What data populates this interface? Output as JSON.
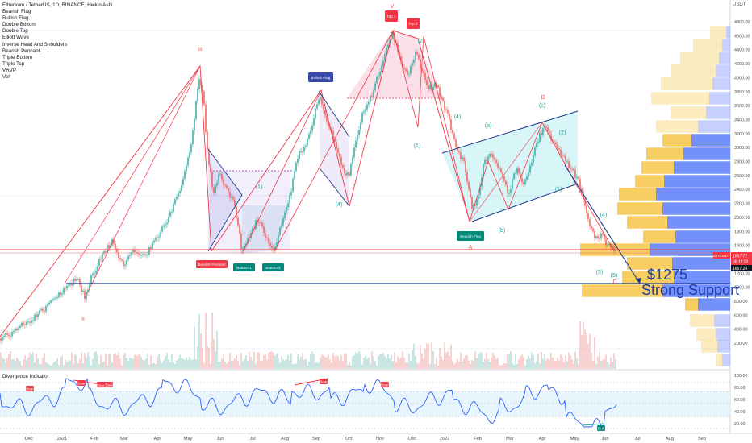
{
  "header": {
    "title": "Ethereum / TetherUS, 1D, BINANCE, Heikin Ashi",
    "indicators": [
      "Bearish Flag",
      "Bullish Flag",
      "Double Bottom",
      "Double Top",
      "Elliott Wave",
      "Inverse Head And Shoulders",
      "Bearish Pennant",
      "Triple Bottom",
      "Triple Top",
      "VRVP",
      "Vol"
    ]
  },
  "price_axis": {
    "unit": "USDT",
    "ticks": [
      "4800.00",
      "4600.00",
      "4400.00",
      "4200.00",
      "4000.00",
      "3800.00",
      "3600.00",
      "3400.00",
      "3200.00",
      "3000.00",
      "2800.00",
      "2600.00",
      "2400.00",
      "2200.00",
      "2000.00",
      "1800.00",
      "1600.00",
      "1400.00",
      "1200.00",
      "1000.00",
      "800.00",
      "600.00",
      "400.00",
      "200.00"
    ],
    "symbol_tag": "ETHUSDT",
    "price_tags": [
      "1667.72",
      "06:11:13",
      "1667.24"
    ],
    "tag_colors": {
      "symbol": "#f23645",
      "price": "#131722"
    }
  },
  "osc_axis": {
    "ticks": [
      "100.00",
      "80.00",
      "60.00",
      "40.00",
      "20.00"
    ]
  },
  "time_axis": {
    "ticks": [
      "Dec",
      "2021",
      "Feb",
      "Mar",
      "Apr",
      "May",
      "Jun",
      "Jul",
      "Aug",
      "Sep",
      "Oct",
      "Nov",
      "Dec",
      "2022",
      "Feb",
      "Mar",
      "Apr",
      "May",
      "Jun",
      "Jul",
      "Aug",
      "Sep"
    ]
  },
  "annotations": {
    "patterns": [
      "Bearish Pennant",
      "Bottom 1",
      "Bottom 2",
      "Bullish Flag",
      "Bearish Flag",
      "Top 1",
      "Top 2"
    ],
    "waves": [
      "(1)",
      "(4)",
      "(2)",
      "(4)",
      "(1)",
      "(a)",
      "(b)",
      "(c)",
      "(2)",
      "(1)",
      "(4)",
      "(3)",
      "(5)"
    ],
    "letters": [
      "V",
      "B",
      "A",
      "C",
      "I",
      "II",
      "III"
    ],
    "callout_price": "$1275",
    "callout_text": "Strong Support"
  },
  "oscillator": {
    "title": "Divergence Indicator",
    "labels": [
      "Bear",
      "Bear",
      "Bear/Bear",
      "Bear",
      "Bear",
      "Bull"
    ]
  },
  "colors": {
    "bull": "#26a69a",
    "bear": "#ef5350",
    "support_line": "#1e3a8a",
    "resistance_line": "#f23645",
    "callout_text": "#1e3aa8",
    "osc_line": "#2962ff",
    "vp_up": "#f7c548",
    "vp_down": "#5b7cfa"
  },
  "chart_data": {
    "type": "candlestick",
    "title": "Ethereum / TetherUS, 1D, BINANCE, Heikin Ashi",
    "ylabel": "USDT",
    "ylim": [
      100,
      4950
    ],
    "x": [
      "2020-12",
      "2021-01",
      "2021-02",
      "2021-03",
      "2021-04",
      "2021-05",
      "2021-06",
      "2021-07",
      "2021-08",
      "2021-09",
      "2021-10",
      "2021-11",
      "2021-12",
      "2022-01",
      "2022-02",
      "2022-03",
      "2022-04",
      "2022-05",
      "2022-06"
    ],
    "series": [
      {
        "values": [
          650,
          1200,
          1800,
          1750,
          2200,
          3600,
          2300,
          2100,
          3100,
          3400,
          3600,
          4600,
          4000,
          3200,
          2800,
          2900,
          3300,
          2400,
          1750
        ]
      }
    ],
    "key_levels": [
      1800,
      1275
    ],
    "oscillator_range": [
      0,
      100
    ]
  }
}
